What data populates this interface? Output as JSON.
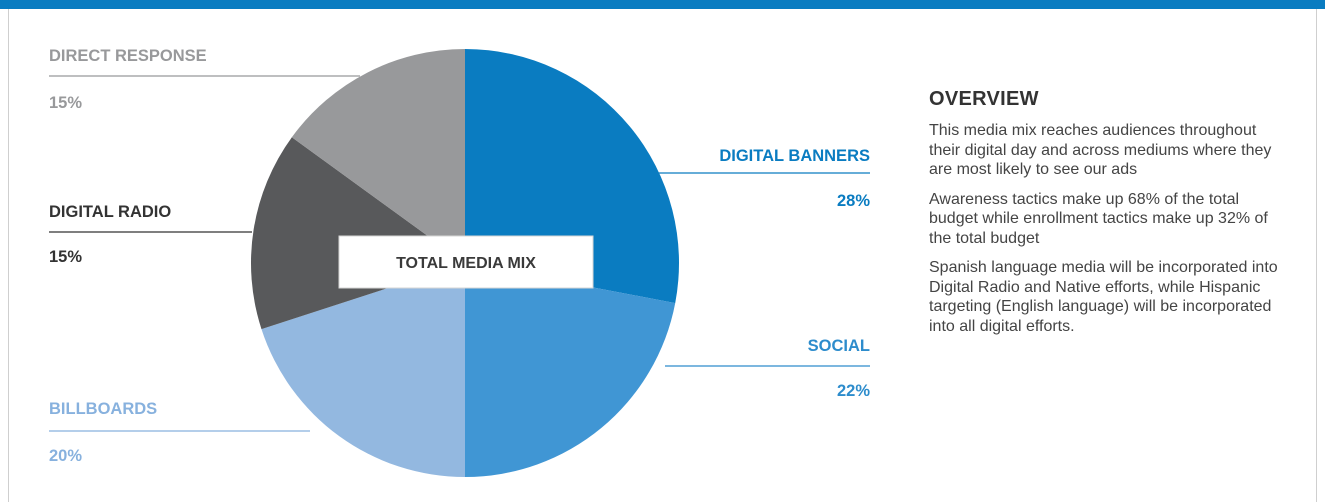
{
  "colors": {
    "top_bar": "#0a7cc1",
    "frame": "#cfcfcf"
  },
  "chart_data": {
    "type": "pie",
    "title": "",
    "center_label": "TOTAL MEDIA MIX",
    "slices": [
      {
        "label": "DIGITAL BANNERS",
        "value_label": "28%",
        "value": 28,
        "color": "#0a7cc1",
        "label_color": "#0a7cc1"
      },
      {
        "label": "SOCIAL",
        "value_label": "22%",
        "value": 22,
        "color": "#4096d4",
        "label_color": "#2d8ccc"
      },
      {
        "label": "BILLBOARDS",
        "value_label": "20%",
        "value": 20,
        "color": "#93b8e0",
        "label_color": "#87b1de"
      },
      {
        "label": "DIGITAL RADIO",
        "value_label": "15%",
        "value": 15,
        "color": "#58595b",
        "label_color": "#333333"
      },
      {
        "label": "DIRECT RESPONSE",
        "value_label": "15%",
        "value": 15,
        "color": "#98999b",
        "label_color": "#98999b"
      }
    ]
  },
  "overview": {
    "heading": "OVERVIEW",
    "paragraphs": [
      "This media mix reaches audiences throughout their digital day and across mediums where they are most likely to see our ads",
      "Awareness tactics make up 68% of the total budget while enrollment tactics make up 32% of the total budget",
      "Spanish language media will be incorporated into Digital Radio and Native efforts, while Hispanic targeting (English language) will be incorporated into all digital efforts."
    ]
  }
}
